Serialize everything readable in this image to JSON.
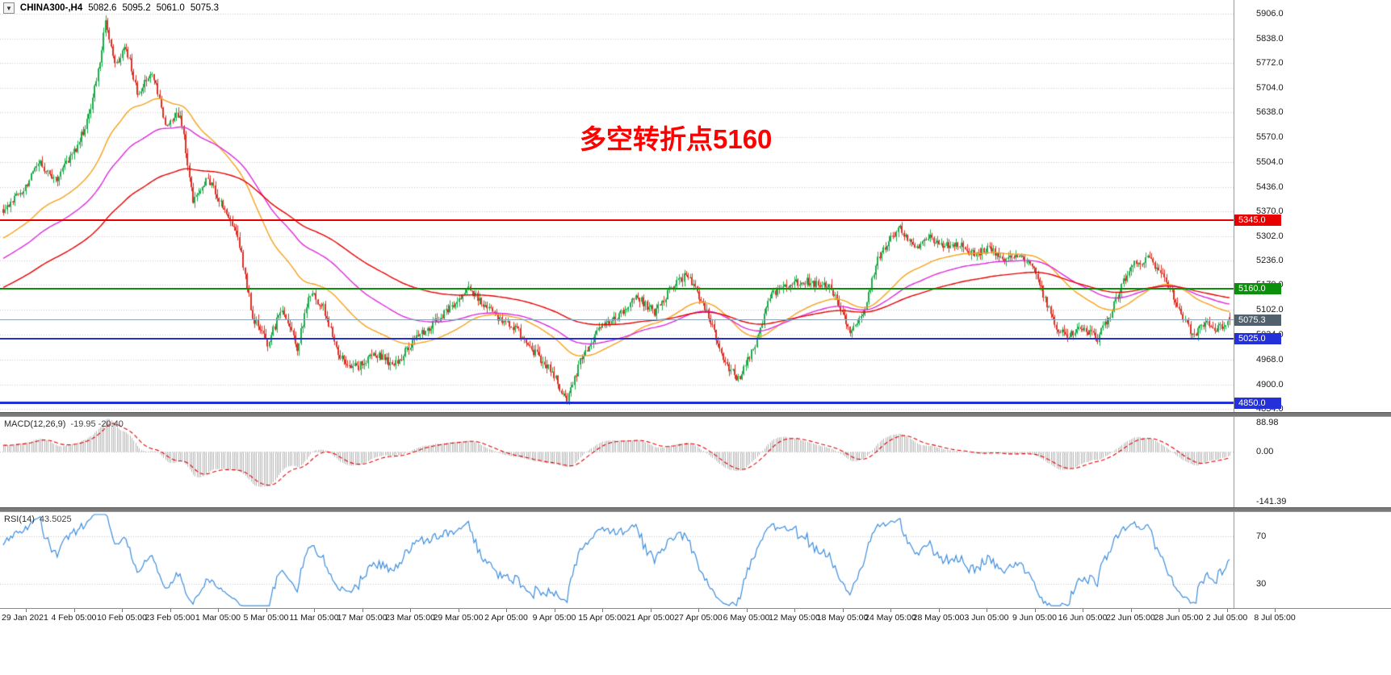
{
  "header": {
    "dropdown_icon": "▼",
    "symbol": "CHINA300-,H4",
    "open": "5082.6",
    "high": "5095.2",
    "low": "5061.0",
    "close": "5075.3"
  },
  "annotation": {
    "text": "多空转折点5160",
    "color": "#ff0000"
  },
  "indicators": {
    "macd": {
      "label": "MACD(12,26,9)",
      "values": "-19.95 -20.40",
      "histogram_color": "#b5b5b5",
      "signal_color": "#e60000"
    },
    "rsi": {
      "label": "RSI(14)",
      "value": "43.5025",
      "color": "#3c8ddc"
    }
  },
  "levels": [
    {
      "label": "5345.0",
      "value": 5345.0,
      "color": "#e80000",
      "badge": "#e80000",
      "width": 2,
      "name": "resistance-line-5345"
    },
    {
      "label": "5160.0",
      "value": 5160.0,
      "color": "#0a900a",
      "badge": "#0a900a",
      "width": 2,
      "name": "pivot-line-5160"
    },
    {
      "label": "5075.3",
      "value": 5075.3,
      "color": "#8fa3b8",
      "badge": "#50606c",
      "width": 1,
      "name": "bid-price-line"
    },
    {
      "label": "5025.0",
      "value": 5025.0,
      "color": "#2431d8",
      "badge": "#2431d8",
      "width": 2,
      "name": "support-line-5025"
    },
    {
      "label": "4850.0",
      "value": 4850.0,
      "color": "#2431d8",
      "badge": "#2431d8",
      "width": 3,
      "name": "support-line-4850"
    }
  ],
  "chart_data": {
    "type": "candlestick",
    "title": "CHINA300- H4",
    "ylim": [
      4825,
      5943
    ],
    "y_ticks": [
      5906,
      5838,
      5772,
      5704,
      5638,
      5570,
      5504,
      5436,
      5370,
      5302,
      5236,
      5170,
      5102,
      5034,
      4968,
      4900,
      4834
    ],
    "x_labels": [
      "29 Jan 2021",
      "4 Feb 05:00",
      "10 Feb 05:00",
      "23 Feb 05:00",
      "1 Mar 05:00",
      "5 Mar 05:00",
      "11 Mar 05:00",
      "17 Mar 05:00",
      "23 Mar 05:00",
      "29 Mar 05:00",
      "2 Apr 05:00",
      "9 Apr 05:00",
      "15 Apr 05:00",
      "21 Apr 05:00",
      "27 Apr 05:00",
      "6 May 05:00",
      "12 May 05:00",
      "18 May 05:00",
      "24 May 05:00",
      "28 May 05:00",
      "3 Jun 05:00",
      "9 Jun 05:00",
      "16 Jun 05:00",
      "22 Jun 05:00",
      "28 Jun 05:00",
      "2 Jul 05:00",
      "8 Jul 05:00"
    ],
    "candle_count": 660,
    "last_candle": {
      "open": 5082.6,
      "high": 5095.2,
      "low": 5061.0,
      "close": 5075.3
    },
    "up_color": "#1cab4a",
    "down_color": "#dd3126",
    "prehistory_anchors": [
      [
        -250,
        4860
      ],
      [
        -210,
        4895
      ],
      [
        -170,
        4940
      ],
      [
        -130,
        5000
      ],
      [
        -95,
        5080
      ],
      [
        -60,
        5190
      ],
      [
        -30,
        5300
      ],
      [
        -10,
        5345
      ]
    ],
    "close_anchors": [
      [
        0,
        5370
      ],
      [
        10,
        5425
      ],
      [
        20,
        5500
      ],
      [
        28,
        5455
      ],
      [
        38,
        5530
      ],
      [
        45,
        5610
      ],
      [
        51,
        5750
      ],
      [
        55,
        5880
      ],
      [
        60,
        5765
      ],
      [
        66,
        5815
      ],
      [
        72,
        5690
      ],
      [
        80,
        5745
      ],
      [
        88,
        5595
      ],
      [
        95,
        5640
      ],
      [
        102,
        5395
      ],
      [
        110,
        5460
      ],
      [
        118,
        5385
      ],
      [
        126,
        5305
      ],
      [
        134,
        5085
      ],
      [
        142,
        5010
      ],
      [
        150,
        5110
      ],
      [
        158,
        5000
      ],
      [
        165,
        5150
      ],
      [
        172,
        5110
      ],
      [
        180,
        4980
      ],
      [
        190,
        4945
      ],
      [
        200,
        4985
      ],
      [
        210,
        4950
      ],
      [
        220,
        5015
      ],
      [
        230,
        5060
      ],
      [
        240,
        5105
      ],
      [
        250,
        5160
      ],
      [
        258,
        5115
      ],
      [
        266,
        5080
      ],
      [
        275,
        5055
      ],
      [
        285,
        4990
      ],
      [
        295,
        4935
      ],
      [
        303,
        4850
      ],
      [
        310,
        4965
      ],
      [
        320,
        5050
      ],
      [
        330,
        5080
      ],
      [
        340,
        5140
      ],
      [
        350,
        5095
      ],
      [
        360,
        5170
      ],
      [
        368,
        5200
      ],
      [
        378,
        5095
      ],
      [
        388,
        4955
      ],
      [
        395,
        4915
      ],
      [
        405,
        5020
      ],
      [
        412,
        5140
      ],
      [
        420,
        5170
      ],
      [
        432,
        5180
      ],
      [
        445,
        5160
      ],
      [
        455,
        5045
      ],
      [
        462,
        5090
      ],
      [
        470,
        5240
      ],
      [
        477,
        5300
      ],
      [
        482,
        5320
      ],
      [
        490,
        5270
      ],
      [
        497,
        5300
      ],
      [
        505,
        5280
      ],
      [
        515,
        5280
      ],
      [
        522,
        5250
      ],
      [
        530,
        5270
      ],
      [
        538,
        5230
      ],
      [
        546,
        5255
      ],
      [
        552,
        5230
      ],
      [
        558,
        5160
      ],
      [
        565,
        5060
      ],
      [
        572,
        5030
      ],
      [
        580,
        5055
      ],
      [
        588,
        5025
      ],
      [
        595,
        5090
      ],
      [
        602,
        5180
      ],
      [
        608,
        5230
      ],
      [
        615,
        5240
      ],
      [
        622,
        5210
      ],
      [
        628,
        5150
      ],
      [
        634,
        5080
      ],
      [
        640,
        5030
      ],
      [
        646,
        5075
      ],
      [
        652,
        5050
      ],
      [
        659,
        5075.3
      ]
    ],
    "noise": {
      "seed": 11,
      "close_jitter": 11,
      "wick": 15
    },
    "moving_averages": [
      {
        "period": 55,
        "color": "#f5a21b"
      },
      {
        "period": 95,
        "color": "#dc2cdc"
      },
      {
        "period": 170,
        "color": "#e60000"
      }
    ],
    "macd": {
      "fast": 12,
      "slow": 26,
      "signal": 9,
      "scale_pos": 88.98,
      "scale_neg": -141.39,
      "last_main": -19.95,
      "last_signal": -20.4
    },
    "rsi": {
      "period": 14,
      "last": 43.5025,
      "range": [
        10,
        90
      ],
      "levels": [
        70,
        30
      ]
    }
  }
}
